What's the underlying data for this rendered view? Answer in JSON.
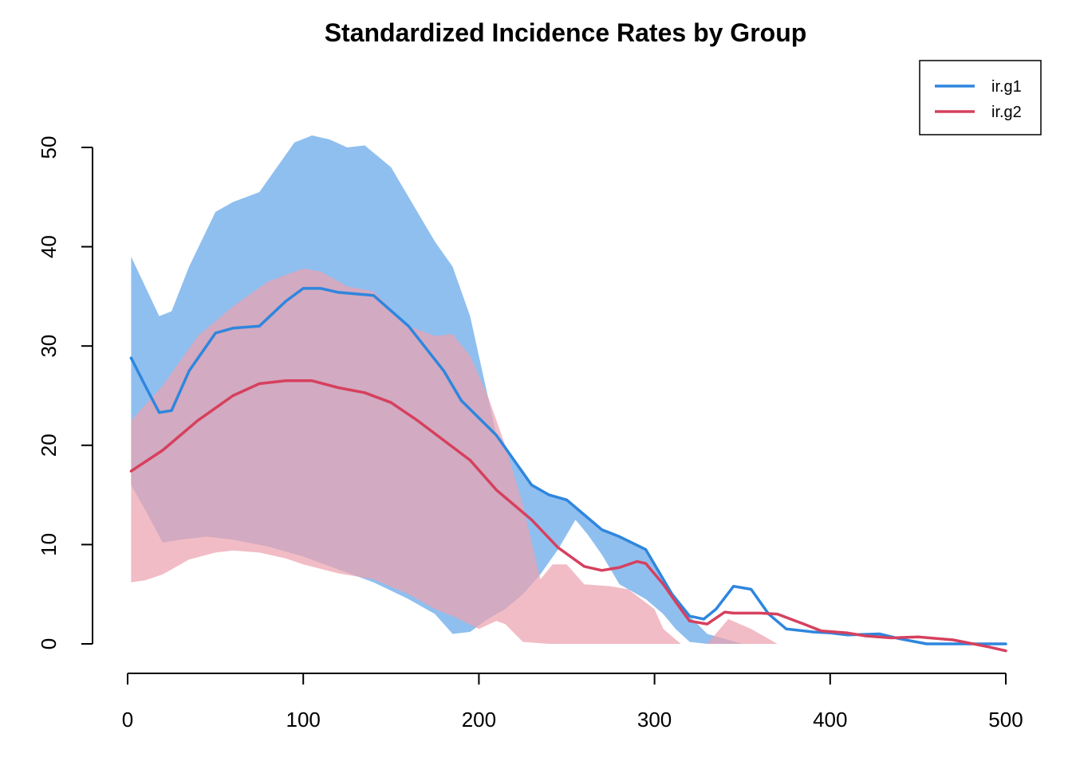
{
  "chart_data": {
    "type": "area",
    "title": "Standardized Incidence Rates by Group",
    "xlabel": "",
    "ylabel": "",
    "xlim": [
      0,
      500
    ],
    "ylim": [
      -2,
      52
    ],
    "x_ticks": [
      0,
      100,
      200,
      300,
      400,
      500
    ],
    "y_ticks": [
      0,
      10,
      20,
      30,
      40,
      50
    ],
    "grid": false,
    "legend_position": "top-right",
    "series": [
      {
        "name": "ir.g1",
        "color": "#2E86DE",
        "band_color": "#8FBFEF",
        "line": [
          [
            2,
            28.8
          ],
          [
            10,
            26
          ],
          [
            18,
            23.3
          ],
          [
            25,
            23.5
          ],
          [
            35,
            27.5
          ],
          [
            50,
            31.3
          ],
          [
            60,
            31.8
          ],
          [
            75,
            32
          ],
          [
            90,
            34.5
          ],
          [
            100,
            35.8
          ],
          [
            110,
            35.8
          ],
          [
            120,
            35.4
          ],
          [
            140,
            35.1
          ],
          [
            160,
            32
          ],
          [
            180,
            27.5
          ],
          [
            190,
            24.5
          ],
          [
            210,
            21
          ],
          [
            230,
            16
          ],
          [
            240,
            15
          ],
          [
            250,
            14.5
          ],
          [
            260,
            13
          ],
          [
            270,
            11.5
          ],
          [
            280,
            10.8
          ],
          [
            295,
            9.5
          ],
          [
            310,
            5
          ],
          [
            320,
            2.8
          ],
          [
            328,
            2.5
          ],
          [
            335,
            3.5
          ],
          [
            345,
            5.8
          ],
          [
            355,
            5.5
          ],
          [
            365,
            3
          ],
          [
            375,
            1.5
          ],
          [
            390,
            1.2
          ],
          [
            400,
            1.1
          ],
          [
            410,
            0.9
          ],
          [
            428,
            1
          ],
          [
            440,
            0.5
          ],
          [
            455,
            0
          ],
          [
            500,
            0
          ]
        ],
        "upper": [
          [
            2,
            39
          ],
          [
            10,
            36
          ],
          [
            18,
            33
          ],
          [
            25,
            33.5
          ],
          [
            35,
            38
          ],
          [
            50,
            43.5
          ],
          [
            60,
            44.5
          ],
          [
            75,
            45.5
          ],
          [
            85,
            48
          ],
          [
            95,
            50.5
          ],
          [
            105,
            51.2
          ],
          [
            115,
            50.8
          ],
          [
            125,
            50
          ],
          [
            135,
            50.2
          ],
          [
            150,
            48
          ],
          [
            165,
            43.5
          ],
          [
            175,
            40.5
          ],
          [
            185,
            38
          ],
          [
            195,
            33
          ],
          [
            210,
            21
          ],
          [
            230,
            16
          ],
          [
            240,
            15
          ],
          [
            250,
            14.5
          ],
          [
            260,
            13
          ],
          [
            270,
            11.5
          ],
          [
            280,
            10.8
          ],
          [
            295,
            9.5
          ],
          [
            310,
            5
          ],
          [
            320,
            2.8
          ],
          [
            330,
            1
          ],
          [
            350,
            0
          ],
          [
            500,
            0
          ]
        ],
        "lower": [
          [
            2,
            16
          ],
          [
            10,
            13.5
          ],
          [
            20,
            10.2
          ],
          [
            30,
            10.5
          ],
          [
            45,
            10.8
          ],
          [
            60,
            10.5
          ],
          [
            80,
            9.8
          ],
          [
            100,
            8.8
          ],
          [
            120,
            7.5
          ],
          [
            140,
            6.2
          ],
          [
            160,
            4.5
          ],
          [
            175,
            3
          ],
          [
            185,
            1
          ],
          [
            195,
            1.2
          ],
          [
            205,
            2.5
          ],
          [
            215,
            3.5
          ],
          [
            225,
            5
          ],
          [
            235,
            7
          ],
          [
            245,
            9.5
          ],
          [
            255,
            12.5
          ],
          [
            262,
            11
          ],
          [
            270,
            9
          ],
          [
            280,
            6
          ],
          [
            295,
            4.5
          ],
          [
            305,
            3
          ],
          [
            312,
            1.5
          ],
          [
            320,
            0.2
          ],
          [
            330,
            0
          ],
          [
            500,
            0
          ]
        ]
      },
      {
        "name": "ir.g2",
        "color": "#D6405E",
        "band_color": "#EBA2AE",
        "line": [
          [
            2,
            17.4
          ],
          [
            20,
            19.5
          ],
          [
            40,
            22.5
          ],
          [
            60,
            25
          ],
          [
            75,
            26.2
          ],
          [
            90,
            26.5
          ],
          [
            105,
            26.5
          ],
          [
            120,
            25.8
          ],
          [
            135,
            25.3
          ],
          [
            150,
            24.3
          ],
          [
            165,
            22.5
          ],
          [
            180,
            20.5
          ],
          [
            195,
            18.5
          ],
          [
            210,
            15.5
          ],
          [
            230,
            12.5
          ],
          [
            245,
            9.7
          ],
          [
            260,
            7.8
          ],
          [
            270,
            7.4
          ],
          [
            280,
            7.7
          ],
          [
            290,
            8.3
          ],
          [
            295,
            8.1
          ],
          [
            305,
            6
          ],
          [
            315,
            3.5
          ],
          [
            320,
            2.3
          ],
          [
            330,
            2
          ],
          [
            340,
            3.2
          ],
          [
            345,
            3.1
          ],
          [
            360,
            3.1
          ],
          [
            370,
            3
          ],
          [
            385,
            2
          ],
          [
            395,
            1.3
          ],
          [
            410,
            1.1
          ],
          [
            420,
            0.8
          ],
          [
            435,
            0.6
          ],
          [
            450,
            0.7
          ],
          [
            470,
            0.4
          ],
          [
            490,
            -0.3
          ],
          [
            500,
            -0.7
          ]
        ],
        "upper": [
          [
            2,
            22.5
          ],
          [
            20,
            26
          ],
          [
            40,
            31
          ],
          [
            60,
            34
          ],
          [
            80,
            36.5
          ],
          [
            100,
            37.8
          ],
          [
            110,
            37.5
          ],
          [
            125,
            36
          ],
          [
            140,
            35.5
          ],
          [
            160,
            32
          ],
          [
            175,
            31
          ],
          [
            185,
            31.2
          ],
          [
            195,
            29
          ],
          [
            205,
            25
          ],
          [
            215,
            20
          ],
          [
            225,
            14
          ],
          [
            235,
            6.5
          ],
          [
            242,
            8
          ],
          [
            250,
            8
          ],
          [
            260,
            6
          ],
          [
            275,
            5.8
          ],
          [
            285,
            5.5
          ],
          [
            300,
            3.5
          ],
          [
            305,
            1.5
          ],
          [
            315,
            0
          ],
          [
            330,
            0
          ],
          [
            342,
            2.5
          ],
          [
            355,
            1.5
          ],
          [
            370,
            0
          ],
          [
            500,
            0
          ]
        ],
        "lower": [
          [
            2,
            6.2
          ],
          [
            10,
            6.4
          ],
          [
            20,
            7
          ],
          [
            35,
            8.5
          ],
          [
            50,
            9.2
          ],
          [
            60,
            9.4
          ],
          [
            75,
            9.2
          ],
          [
            90,
            8.6
          ],
          [
            100,
            8
          ],
          [
            120,
            7.1
          ],
          [
            140,
            6.5
          ],
          [
            160,
            5
          ],
          [
            175,
            3.5
          ],
          [
            185,
            2.8
          ],
          [
            200,
            1.5
          ],
          [
            210,
            2.3
          ],
          [
            215,
            2
          ],
          [
            225,
            0.2
          ],
          [
            240,
            0
          ],
          [
            300,
            0
          ],
          [
            500,
            0
          ]
        ]
      }
    ]
  }
}
